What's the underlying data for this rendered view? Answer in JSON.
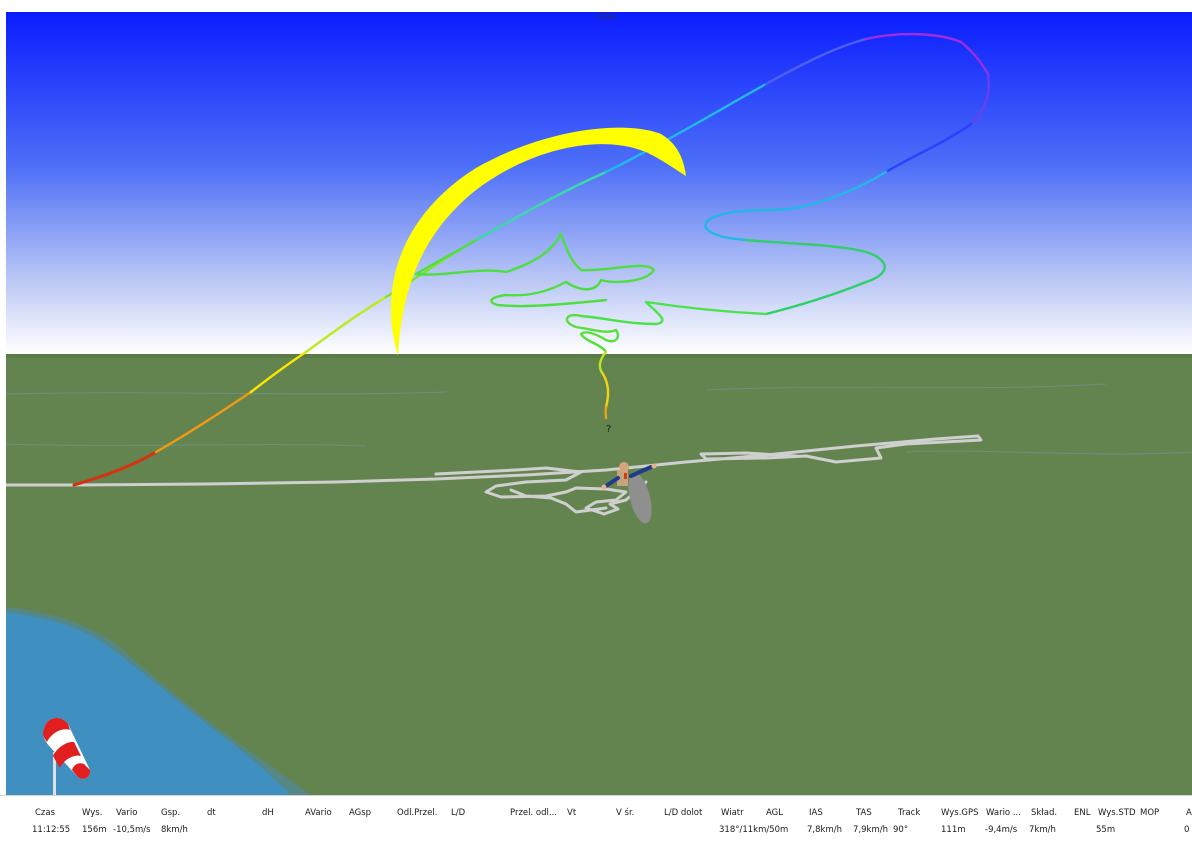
{
  "viewport": {
    "top_label": "(30x)",
    "point_marker": "?",
    "colors": {
      "sky_top": "#0a1cff",
      "sky_bottom": "#ffffff",
      "ground": "#64844f",
      "water": "#3d8fc6",
      "wing": "#ffff00",
      "ground_track": "#cfcfcf"
    },
    "icons": {
      "glider": "paraglider-wing-icon",
      "pilot": "pilot-icon",
      "windsock": "windsock-icon"
    }
  },
  "table": {
    "columns": [
      {
        "header": "Czas",
        "value": "11:12:55"
      },
      {
        "header": "Wys.",
        "value": "156m"
      },
      {
        "header": "Vario",
        "value": "-10,5m/s"
      },
      {
        "header": "Gsp.",
        "value": "8km/h"
      },
      {
        "header": "dt",
        "value": ""
      },
      {
        "header": "dH",
        "value": ""
      },
      {
        "header": "AVario",
        "value": ""
      },
      {
        "header": "AGsp",
        "value": ""
      },
      {
        "header": "Odl.Przel.",
        "value": ""
      },
      {
        "header": "L/D",
        "value": ""
      },
      {
        "header": "Przel. odl...",
        "value": ""
      },
      {
        "header": "Vt",
        "value": ""
      },
      {
        "header": "V śr.",
        "value": ""
      },
      {
        "header": "L/D dolot",
        "value": ""
      },
      {
        "header": "Wiatr",
        "value": "318°/11km/50m"
      },
      {
        "header": "AGL",
        "value": ""
      },
      {
        "header": "IAS",
        "value": "7,8km/h"
      },
      {
        "header": "TAS",
        "value": "7,9km/h"
      },
      {
        "header": "Track",
        "value": "90°"
      },
      {
        "header": "Wys.GPS",
        "value": "111m"
      },
      {
        "header": "Wario ...",
        "value": "-9,4m/s"
      },
      {
        "header": "Skład.",
        "value": "7km/h"
      },
      {
        "header": "ENL",
        "value": ""
      },
      {
        "header": "Wys.STD",
        "value": "55m"
      },
      {
        "header": "MOP",
        "value": ""
      },
      {
        "header": "A",
        "value": "0"
      }
    ]
  }
}
